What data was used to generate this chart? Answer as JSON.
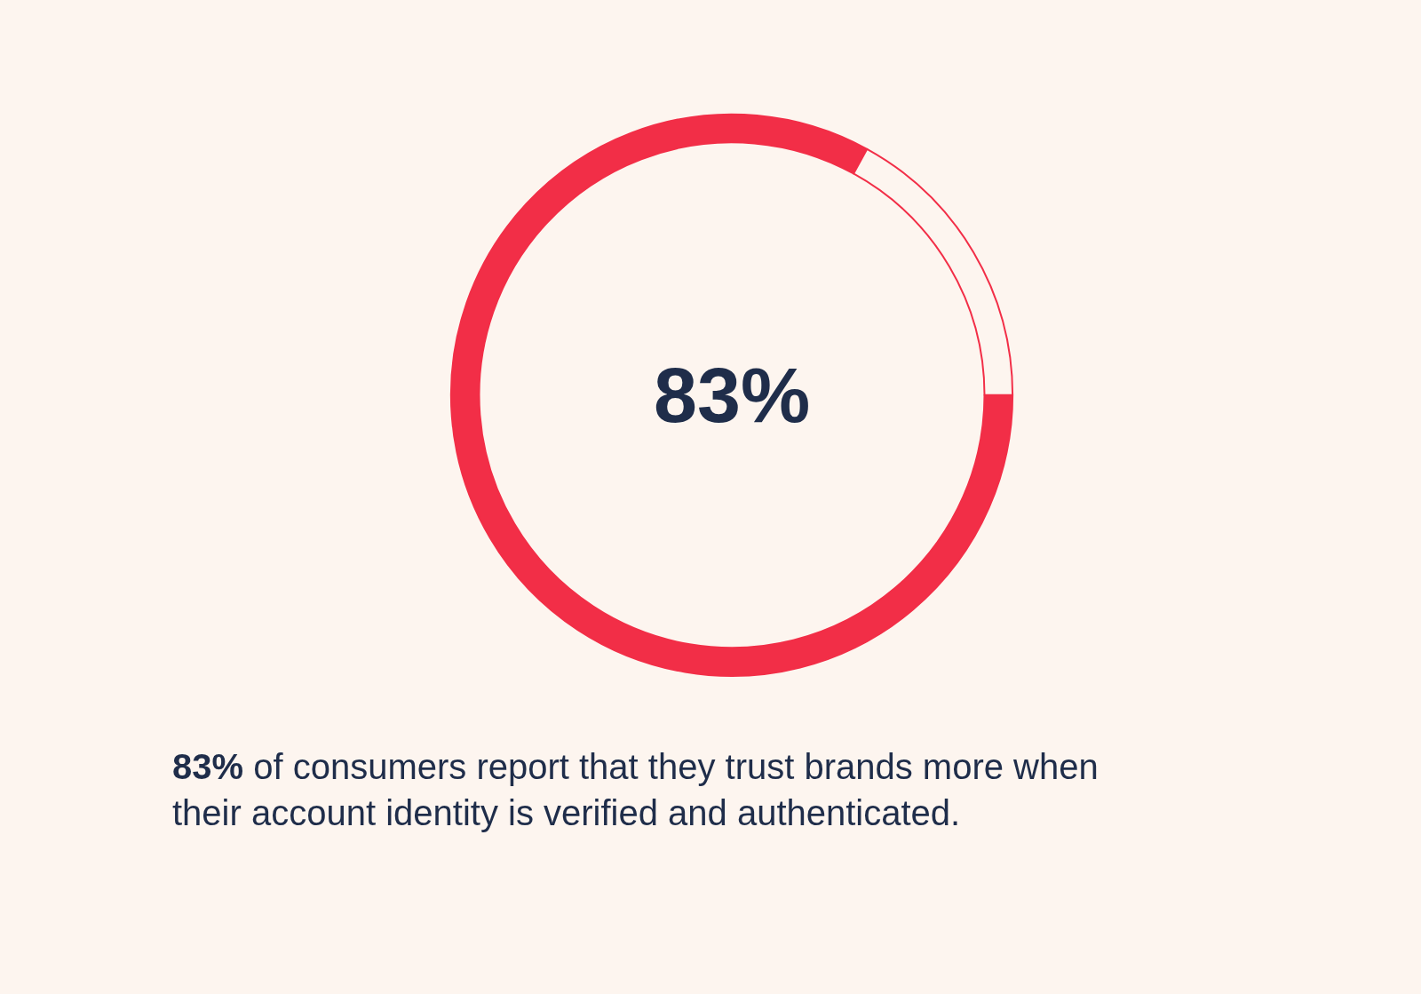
{
  "chart_data": {
    "type": "donut",
    "categories": [
      null,
      null
    ],
    "values": [
      83,
      17
    ],
    "colors": [
      "#f22e47",
      "#fdf5ef"
    ],
    "value_labels": [
      "83%",
      null
    ],
    "annotations": [
      "83% of consumers report that they trust brands more when their account identity is verified and authenticated."
    ],
    "legend": false
  }
}
